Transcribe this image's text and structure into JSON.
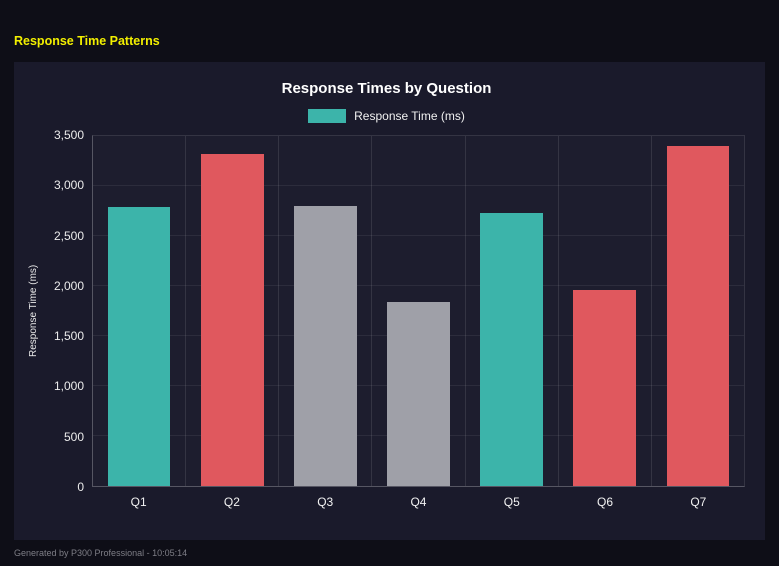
{
  "page": {
    "title": "Response Time Patterns",
    "footer": "Generated by P300 Professional - 10:05:14"
  },
  "colors": {
    "teal": "#3cb4aa",
    "red": "#e0585e",
    "gray": "#9fa0a8",
    "panel_bg": "#1a1a2b",
    "page_bg": "#0e0e17",
    "title_yellow": "#f2ef00"
  },
  "chart_data": {
    "type": "bar",
    "title": "Response Times by Question",
    "legend": [
      {
        "label": "Response Time (ms)",
        "color": "#3cb4aa"
      }
    ],
    "categories": [
      "Q1",
      "Q2",
      "Q3",
      "Q4",
      "Q5",
      "Q6",
      "Q7"
    ],
    "values": [
      2790,
      3320,
      2800,
      1840,
      2730,
      1960,
      3400
    ],
    "bar_colors": [
      "#3cb4aa",
      "#e0585e",
      "#9fa0a8",
      "#9fa0a8",
      "#3cb4aa",
      "#e0585e",
      "#e0585e"
    ],
    "xlabel": "",
    "ylabel": "Response Time (ms)",
    "ylim": [
      0,
      3500
    ],
    "yticks": [
      0,
      500,
      1000,
      1500,
      2000,
      2500,
      3000,
      3500
    ],
    "ytick_labels": [
      "0",
      "500",
      "1,000",
      "1,500",
      "2,000",
      "2,500",
      "3,000",
      "3,500"
    ],
    "grid": true,
    "legend_position": "top"
  }
}
